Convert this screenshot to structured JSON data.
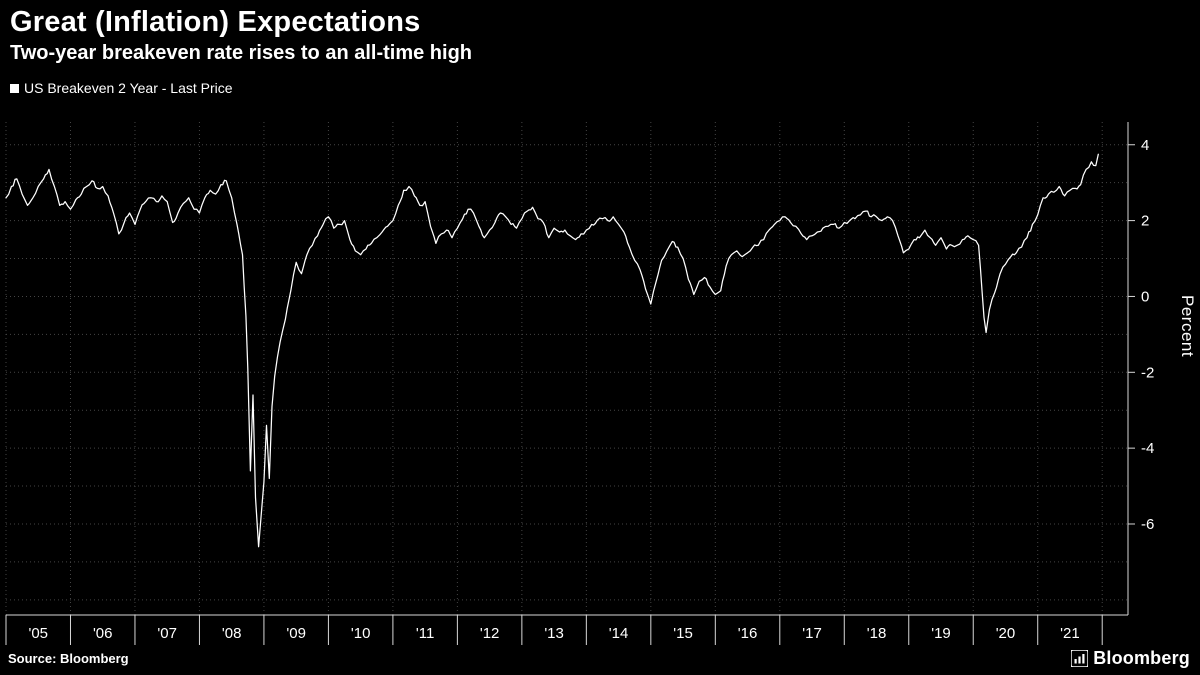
{
  "header": {
    "title": "Great (Inflation) Expectations",
    "subtitle": "Two-year breakeven rate rises to an all-time high"
  },
  "legend": {
    "label": "US Breakeven 2 Year - Last Price",
    "swatch_color": "#ffffff"
  },
  "footer": {
    "source": "Source: Bloomberg",
    "logo_text": "Bloomberg"
  },
  "chart_data": {
    "type": "line",
    "title": "Great (Inflation) Expectations",
    "subtitle": "Two-year breakeven rate rises to an all-time high",
    "xlabel": "",
    "ylabel": "Percent",
    "legend_position": "top-left",
    "grid": "dotted",
    "xlim": [
      2005,
      2022.4
    ],
    "ylim": [
      -8.4,
      4.6
    ],
    "ygrid": [
      -8,
      -7,
      -6,
      -5,
      -4,
      -3,
      -2,
      -1,
      0,
      1,
      2,
      3,
      4
    ],
    "xgrid": [
      2005,
      2006,
      2007,
      2008,
      2009,
      2010,
      2011,
      2012,
      2013,
      2014,
      2015,
      2016,
      2017,
      2018,
      2019,
      2020,
      2021,
      2022
    ],
    "xtick_bounds": [
      2005,
      2006,
      2007,
      2008,
      2009,
      2010,
      2011,
      2012,
      2013,
      2014,
      2015,
      2016,
      2017,
      2018,
      2019,
      2020,
      2021,
      2022
    ],
    "yticks": [
      {
        "v": 4,
        "label": "4"
      },
      {
        "v": 2,
        "label": "2"
      },
      {
        "v": 0,
        "label": "0"
      },
      {
        "v": -2,
        "label": "-2"
      },
      {
        "v": -4,
        "label": "-4"
      },
      {
        "v": -6,
        "label": "-6"
      }
    ],
    "xticks": [
      {
        "v": 2005.5,
        "label": "'05"
      },
      {
        "v": 2006.5,
        "label": "'06"
      },
      {
        "v": 2007.5,
        "label": "'07"
      },
      {
        "v": 2008.5,
        "label": "'08"
      },
      {
        "v": 2009.5,
        "label": "'09"
      },
      {
        "v": 2010.5,
        "label": "'10"
      },
      {
        "v": 2011.5,
        "label": "'11"
      },
      {
        "v": 2012.5,
        "label": "'12"
      },
      {
        "v": 2013.5,
        "label": "'13"
      },
      {
        "v": 2014.5,
        "label": "'14"
      },
      {
        "v": 2015.5,
        "label": "'15"
      },
      {
        "v": 2016.5,
        "label": "'16"
      },
      {
        "v": 2017.5,
        "label": "'17"
      },
      {
        "v": 2018.5,
        "label": "'18"
      },
      {
        "v": 2019.5,
        "label": "'19"
      },
      {
        "v": 2020.5,
        "label": "'20"
      },
      {
        "v": 2021.5,
        "label": "'21"
      }
    ],
    "noise_amplitude": 0.055,
    "noise_seed": 7,
    "colors": {
      "background": "#000000",
      "grid": "#454545",
      "axis": "#d8d8d8",
      "line": "#ffffff",
      "text": "#ffffff"
    },
    "series": [
      {
        "name": "US Breakeven 2 Year - Last Price",
        "color": "#ffffff",
        "points": [
          [
            2005.0,
            2.6
          ],
          [
            2005.083,
            2.9
          ],
          [
            2005.167,
            3.1
          ],
          [
            2005.25,
            2.7
          ],
          [
            2005.333,
            2.4
          ],
          [
            2005.417,
            2.6
          ],
          [
            2005.5,
            2.9
          ],
          [
            2005.583,
            3.1
          ],
          [
            2005.667,
            3.35
          ],
          [
            2005.75,
            2.9
          ],
          [
            2005.833,
            2.4
          ],
          [
            2005.917,
            2.5
          ],
          [
            2006.0,
            2.3
          ],
          [
            2006.083,
            2.55
          ],
          [
            2006.167,
            2.7
          ],
          [
            2006.25,
            2.9
          ],
          [
            2006.333,
            3.05
          ],
          [
            2006.417,
            2.85
          ],
          [
            2006.5,
            2.9
          ],
          [
            2006.583,
            2.65
          ],
          [
            2006.667,
            2.2
          ],
          [
            2006.75,
            1.65
          ],
          [
            2006.833,
            1.95
          ],
          [
            2006.917,
            2.2
          ],
          [
            2007.0,
            1.9
          ],
          [
            2007.083,
            2.3
          ],
          [
            2007.167,
            2.5
          ],
          [
            2007.25,
            2.6
          ],
          [
            2007.333,
            2.5
          ],
          [
            2007.417,
            2.65
          ],
          [
            2007.5,
            2.5
          ],
          [
            2007.583,
            1.95
          ],
          [
            2007.667,
            2.2
          ],
          [
            2007.75,
            2.45
          ],
          [
            2007.833,
            2.6
          ],
          [
            2007.917,
            2.3
          ],
          [
            2008.0,
            2.2
          ],
          [
            2008.083,
            2.6
          ],
          [
            2008.167,
            2.8
          ],
          [
            2008.25,
            2.7
          ],
          [
            2008.333,
            2.95
          ],
          [
            2008.417,
            3.05
          ],
          [
            2008.5,
            2.6
          ],
          [
            2008.583,
            1.9
          ],
          [
            2008.667,
            1.1
          ],
          [
            2008.72,
            -0.5
          ],
          [
            2008.75,
            -1.9
          ],
          [
            2008.79,
            -4.6
          ],
          [
            2008.83,
            -2.6
          ],
          [
            2008.87,
            -5.3
          ],
          [
            2008.917,
            -6.6
          ],
          [
            2009.0,
            -4.9
          ],
          [
            2009.04,
            -3.4
          ],
          [
            2009.083,
            -4.8
          ],
          [
            2009.125,
            -2.9
          ],
          [
            2009.167,
            -2.1
          ],
          [
            2009.25,
            -1.2
          ],
          [
            2009.333,
            -0.6
          ],
          [
            2009.417,
            0.15
          ],
          [
            2009.5,
            0.9
          ],
          [
            2009.583,
            0.6
          ],
          [
            2009.667,
            1.1
          ],
          [
            2009.75,
            1.35
          ],
          [
            2009.833,
            1.6
          ],
          [
            2009.917,
            1.9
          ],
          [
            2010.0,
            2.1
          ],
          [
            2010.083,
            1.8
          ],
          [
            2010.167,
            1.9
          ],
          [
            2010.25,
            2.0
          ],
          [
            2010.333,
            1.5
          ],
          [
            2010.417,
            1.2
          ],
          [
            2010.5,
            1.1
          ],
          [
            2010.583,
            1.25
          ],
          [
            2010.667,
            1.4
          ],
          [
            2010.75,
            1.55
          ],
          [
            2010.833,
            1.7
          ],
          [
            2010.917,
            1.85
          ],
          [
            2011.0,
            2.0
          ],
          [
            2011.083,
            2.4
          ],
          [
            2011.167,
            2.8
          ],
          [
            2011.25,
            2.9
          ],
          [
            2011.333,
            2.65
          ],
          [
            2011.417,
            2.4
          ],
          [
            2011.5,
            2.5
          ],
          [
            2011.583,
            1.85
          ],
          [
            2011.667,
            1.4
          ],
          [
            2011.75,
            1.65
          ],
          [
            2011.833,
            1.75
          ],
          [
            2011.917,
            1.55
          ],
          [
            2012.0,
            1.8
          ],
          [
            2012.083,
            2.05
          ],
          [
            2012.167,
            2.3
          ],
          [
            2012.25,
            2.2
          ],
          [
            2012.333,
            1.85
          ],
          [
            2012.417,
            1.55
          ],
          [
            2012.5,
            1.75
          ],
          [
            2012.583,
            1.95
          ],
          [
            2012.667,
            2.2
          ],
          [
            2012.75,
            2.1
          ],
          [
            2012.833,
            1.9
          ],
          [
            2012.917,
            1.8
          ],
          [
            2013.0,
            2.05
          ],
          [
            2013.083,
            2.25
          ],
          [
            2013.167,
            2.35
          ],
          [
            2013.25,
            2.05
          ],
          [
            2013.333,
            1.95
          ],
          [
            2013.417,
            1.55
          ],
          [
            2013.5,
            1.8
          ],
          [
            2013.583,
            1.7
          ],
          [
            2013.667,
            1.75
          ],
          [
            2013.75,
            1.6
          ],
          [
            2013.833,
            1.5
          ],
          [
            2013.917,
            1.65
          ],
          [
            2014.0,
            1.75
          ],
          [
            2014.083,
            1.9
          ],
          [
            2014.167,
            2.0
          ],
          [
            2014.25,
            2.05
          ],
          [
            2014.333,
            2.0
          ],
          [
            2014.417,
            2.1
          ],
          [
            2014.5,
            1.9
          ],
          [
            2014.583,
            1.7
          ],
          [
            2014.667,
            1.3
          ],
          [
            2014.75,
            0.95
          ],
          [
            2014.833,
            0.7
          ],
          [
            2014.917,
            0.2
          ],
          [
            2015.0,
            -0.2
          ],
          [
            2015.083,
            0.4
          ],
          [
            2015.167,
            0.95
          ],
          [
            2015.25,
            1.2
          ],
          [
            2015.333,
            1.45
          ],
          [
            2015.417,
            1.3
          ],
          [
            2015.5,
            1.0
          ],
          [
            2015.583,
            0.45
          ],
          [
            2015.667,
            0.05
          ],
          [
            2015.75,
            0.4
          ],
          [
            2015.833,
            0.5
          ],
          [
            2015.917,
            0.25
          ],
          [
            2016.0,
            0.05
          ],
          [
            2016.083,
            0.15
          ],
          [
            2016.167,
            0.8
          ],
          [
            2016.25,
            1.1
          ],
          [
            2016.333,
            1.2
          ],
          [
            2016.417,
            1.05
          ],
          [
            2016.5,
            1.15
          ],
          [
            2016.583,
            1.3
          ],
          [
            2016.667,
            1.35
          ],
          [
            2016.75,
            1.5
          ],
          [
            2016.833,
            1.75
          ],
          [
            2016.917,
            1.9
          ],
          [
            2017.0,
            2.0
          ],
          [
            2017.083,
            2.1
          ],
          [
            2017.167,
            1.95
          ],
          [
            2017.25,
            1.85
          ],
          [
            2017.333,
            1.65
          ],
          [
            2017.417,
            1.5
          ],
          [
            2017.5,
            1.6
          ],
          [
            2017.583,
            1.7
          ],
          [
            2017.667,
            1.8
          ],
          [
            2017.75,
            1.85
          ],
          [
            2017.833,
            1.9
          ],
          [
            2017.917,
            1.8
          ],
          [
            2018.0,
            1.95
          ],
          [
            2018.083,
            2.0
          ],
          [
            2018.167,
            2.05
          ],
          [
            2018.25,
            2.15
          ],
          [
            2018.333,
            2.25
          ],
          [
            2018.417,
            2.1
          ],
          [
            2018.5,
            2.1
          ],
          [
            2018.583,
            2.0
          ],
          [
            2018.667,
            2.1
          ],
          [
            2018.75,
            2.0
          ],
          [
            2018.833,
            1.6
          ],
          [
            2018.917,
            1.15
          ],
          [
            2019.0,
            1.25
          ],
          [
            2019.083,
            1.5
          ],
          [
            2019.167,
            1.55
          ],
          [
            2019.25,
            1.75
          ],
          [
            2019.333,
            1.55
          ],
          [
            2019.417,
            1.35
          ],
          [
            2019.5,
            1.55
          ],
          [
            2019.583,
            1.25
          ],
          [
            2019.667,
            1.35
          ],
          [
            2019.75,
            1.35
          ],
          [
            2019.833,
            1.5
          ],
          [
            2019.917,
            1.6
          ],
          [
            2020.0,
            1.5
          ],
          [
            2020.083,
            1.35
          ],
          [
            2020.167,
            -0.55
          ],
          [
            2020.2,
            -0.95
          ],
          [
            2020.25,
            -0.35
          ],
          [
            2020.333,
            0.1
          ],
          [
            2020.417,
            0.6
          ],
          [
            2020.5,
            0.85
          ],
          [
            2020.583,
            1.05
          ],
          [
            2020.667,
            1.15
          ],
          [
            2020.75,
            1.3
          ],
          [
            2020.833,
            1.55
          ],
          [
            2020.917,
            1.9
          ],
          [
            2021.0,
            2.15
          ],
          [
            2021.083,
            2.6
          ],
          [
            2021.167,
            2.7
          ],
          [
            2021.25,
            2.75
          ],
          [
            2021.333,
            2.9
          ],
          [
            2021.417,
            2.65
          ],
          [
            2021.5,
            2.8
          ],
          [
            2021.583,
            2.85
          ],
          [
            2021.667,
            2.95
          ],
          [
            2021.75,
            3.35
          ],
          [
            2021.833,
            3.55
          ],
          [
            2021.9,
            3.45
          ],
          [
            2021.94,
            3.75
          ]
        ]
      }
    ]
  }
}
